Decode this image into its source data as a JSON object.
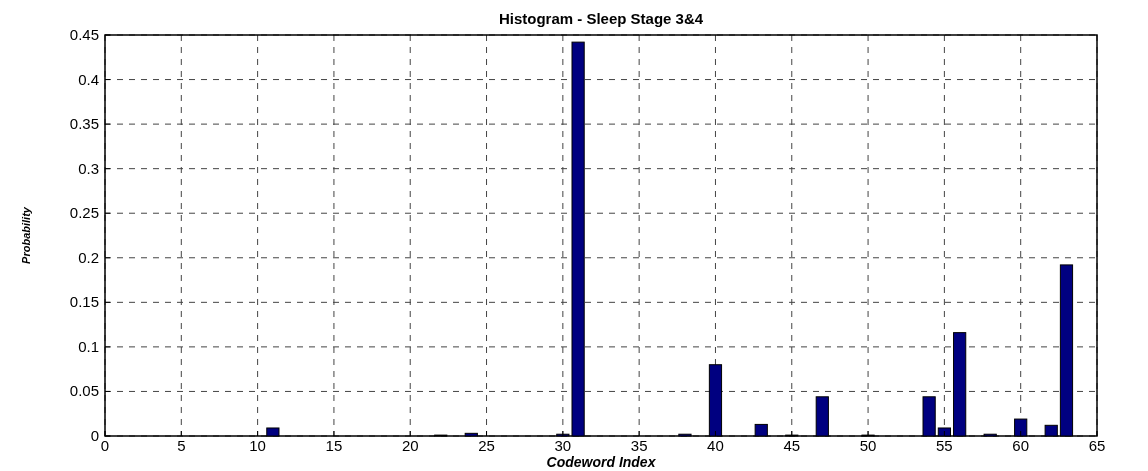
{
  "chart_data": {
    "type": "bar",
    "title": "Histogram - Sleep Stage 3&4",
    "xlabel": "Codeword Index",
    "ylabel": "Probability",
    "x": [
      11,
      22,
      24,
      30,
      31,
      38,
      40,
      43,
      45,
      47,
      50,
      54,
      55,
      56,
      58,
      60,
      62,
      63
    ],
    "values": [
      0.009,
      0.001,
      0.003,
      0.002,
      0.442,
      0.002,
      0.08,
      0.013,
      0.001,
      0.044,
      0.001,
      0.044,
      0.009,
      0.116,
      0.002,
      0.019,
      0.012,
      0.192
    ],
    "color": "#000080",
    "xlim": [
      0,
      65
    ],
    "xticks": [
      0,
      5,
      10,
      15,
      20,
      25,
      30,
      35,
      40,
      45,
      50,
      55,
      60,
      65
    ],
    "ylim": [
      0,
      0.45
    ],
    "yticks": [
      0,
      0.05,
      0.1,
      0.15,
      0.2,
      0.25,
      0.3,
      0.35,
      0.4,
      0.45
    ],
    "grid": true
  }
}
